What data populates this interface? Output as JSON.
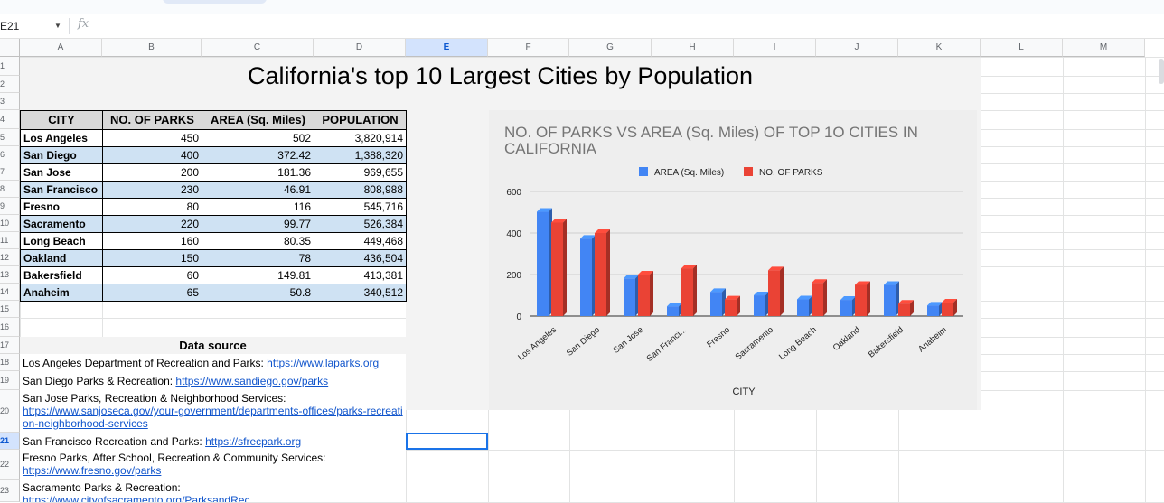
{
  "formula_bar": {
    "cell_ref": "E21",
    "fx_label": "fx"
  },
  "columns": [
    "A",
    "B",
    "C",
    "D",
    "E",
    "F",
    "G",
    "H",
    "I",
    "J",
    "K",
    "L",
    "M"
  ],
  "rows": [
    "1",
    "2",
    "3",
    "4",
    "5",
    "6",
    "7",
    "8",
    "9",
    "10",
    "11",
    "12",
    "13",
    "14",
    "15",
    "16",
    "17",
    "18",
    "19",
    "20",
    "21",
    "22",
    "23"
  ],
  "selected_cell": {
    "col": "E",
    "row": "21"
  },
  "sheet_title": "California's top 10 Largest Cities by Population",
  "table": {
    "headers": [
      "CITY",
      "NO. OF PARKS",
      "AREA (Sq. Miles)",
      "POPULATION"
    ],
    "rows": [
      [
        "Los Angeles",
        "450",
        "502",
        "3,820,914"
      ],
      [
        "San Diego",
        "400",
        "372.42",
        "1,388,320"
      ],
      [
        "San Jose",
        "200",
        "181.36",
        "969,655"
      ],
      [
        "San Francisco",
        "230",
        "46.91",
        "808,988"
      ],
      [
        "Fresno",
        "80",
        "116",
        "545,716"
      ],
      [
        "Sacramento",
        "220",
        "99.77",
        "526,384"
      ],
      [
        "Long Beach",
        "160",
        "80.35",
        "449,468"
      ],
      [
        "Oakland",
        "150",
        "78",
        "436,504"
      ],
      [
        "Bakersfield",
        "60",
        "149.81",
        "413,381"
      ],
      [
        "Anaheim",
        "65",
        "50.8",
        "340,512"
      ]
    ],
    "row_fill": "#cfe2f3"
  },
  "data_source": {
    "heading": "Data source",
    "entries": [
      {
        "text": "Los Angeles Department of Recreation and Parks: ",
        "link": "https://www.laparks.org"
      },
      {
        "text": "San Diego Parks & Recreation: ",
        "link": "https://www.sandiego.gov/parks"
      },
      {
        "text": "San Jose Parks, Recreation & Neighborhood Services:",
        "link": "https://www.sanjoseca.gov/your-government/departments-offices/parks-recreation-neighborhood-services"
      },
      {
        "text": "San Francisco Recreation and Parks: ",
        "link": "https://sfrecpark.org"
      },
      {
        "text": "Fresno Parks, After School, Recreation & Community Services:",
        "link": "https://www.fresno.gov/parks"
      },
      {
        "text": "Sacramento Parks & Recreation:",
        "link": "https://www.cityofsacramento.org/ParksandRec"
      }
    ]
  },
  "chart_data": {
    "type": "bar",
    "title": "NO. OF PARKS VS AREA (Sq. Miles) OF TOP 1O CITIES IN CALIFORNIA",
    "xlabel": "CITY",
    "ylabel": "",
    "categories": [
      "Los Angeles",
      "San Diego",
      "San Jose",
      "San Franci...",
      "Fresno",
      "Sacramento",
      "Long Beach",
      "Oakland",
      "Bakersfield",
      "Anaheim"
    ],
    "series": [
      {
        "name": "AREA (Sq. Miles)",
        "color": "#4285f4",
        "values": [
          502,
          372.42,
          181.36,
          46.91,
          116,
          99.77,
          80.35,
          78,
          149.81,
          50.8
        ]
      },
      {
        "name": "NO. OF PARKS",
        "color": "#ea4335",
        "values": [
          450,
          400,
          200,
          230,
          80,
          220,
          160,
          150,
          60,
          65
        ]
      }
    ],
    "yticks": [
      0,
      200,
      400,
      600
    ],
    "ylim": [
      0,
      600
    ],
    "legend_position": "top",
    "grid": true,
    "style": "3d"
  }
}
